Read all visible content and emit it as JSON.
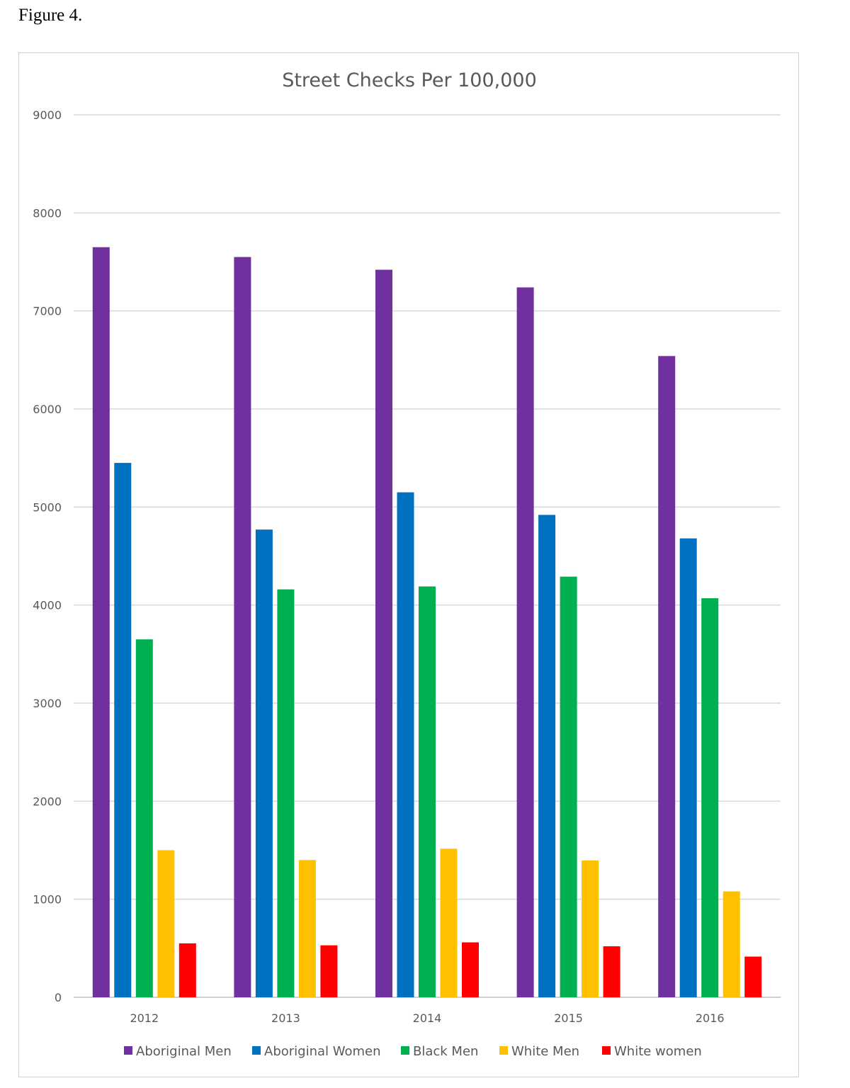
{
  "figure_label": "Figure 4.",
  "chart_data": {
    "type": "bar",
    "title": "Street Checks Per 100,000",
    "xlabel": "",
    "ylabel": "",
    "ylim": [
      0,
      9000
    ],
    "yticks": [
      0,
      1000,
      2000,
      3000,
      4000,
      5000,
      6000,
      7000,
      8000,
      9000
    ],
    "categories": [
      "2012",
      "2013",
      "2014",
      "2015",
      "2016"
    ],
    "grid": true,
    "legend_position": "bottom",
    "series": [
      {
        "name": "Aboriginal Men",
        "color": "#7030a0",
        "values": [
          7650,
          7550,
          7420,
          7240,
          6540
        ]
      },
      {
        "name": "Aboriginal Women",
        "color": "#0070c0",
        "values": [
          5450,
          4770,
          5150,
          4920,
          4680
        ]
      },
      {
        "name": "Black Men",
        "color": "#00b050",
        "values": [
          3650,
          4160,
          4190,
          4290,
          4070
        ]
      },
      {
        "name": "White Men",
        "color": "#ffc000",
        "values": [
          1500,
          1400,
          1515,
          1395,
          1080
        ]
      },
      {
        "name": "White women",
        "color": "#ff0000",
        "values": [
          550,
          530,
          560,
          520,
          415
        ]
      }
    ]
  }
}
